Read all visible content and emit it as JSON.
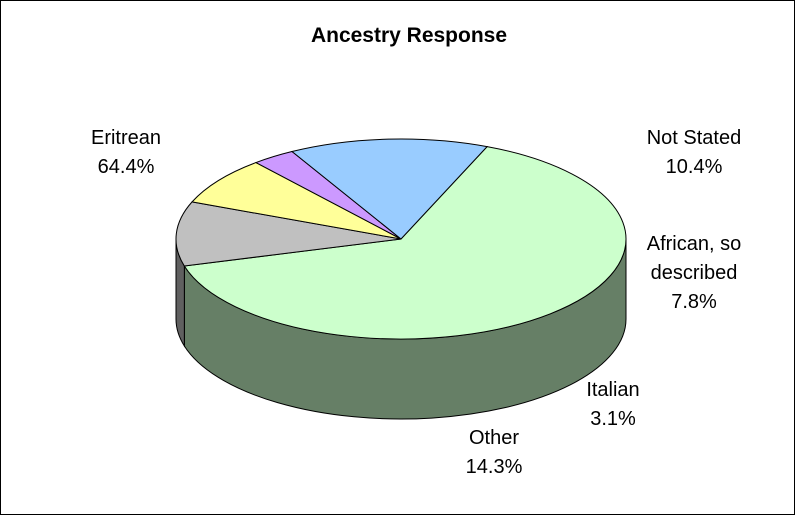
{
  "chart_data": {
    "type": "pie",
    "title": "Ancestry Response",
    "style": "3d",
    "slices": [
      {
        "label": "Eritrean",
        "percent_label": "64.4%",
        "value": 64.4,
        "color": "#ccffcc",
        "side_color": "#667f66"
      },
      {
        "label": "Not Stated",
        "percent_label": "10.4%",
        "value": 10.4,
        "color": "#c0c0c0",
        "side_color": "#606060"
      },
      {
        "label": "African, so described",
        "percent_label": "7.8%",
        "value": 7.8,
        "color": "#ffff99",
        "side_color": "#807f4c"
      },
      {
        "label": "Italian",
        "percent_label": "3.1%",
        "value": 3.1,
        "color": "#cc99ff",
        "side_color": "#664c7f"
      },
      {
        "label": "Other",
        "percent_label": "14.3%",
        "value": 14.3,
        "color": "#99ccff",
        "side_color": "#4c667f"
      }
    ],
    "legend": "none"
  }
}
